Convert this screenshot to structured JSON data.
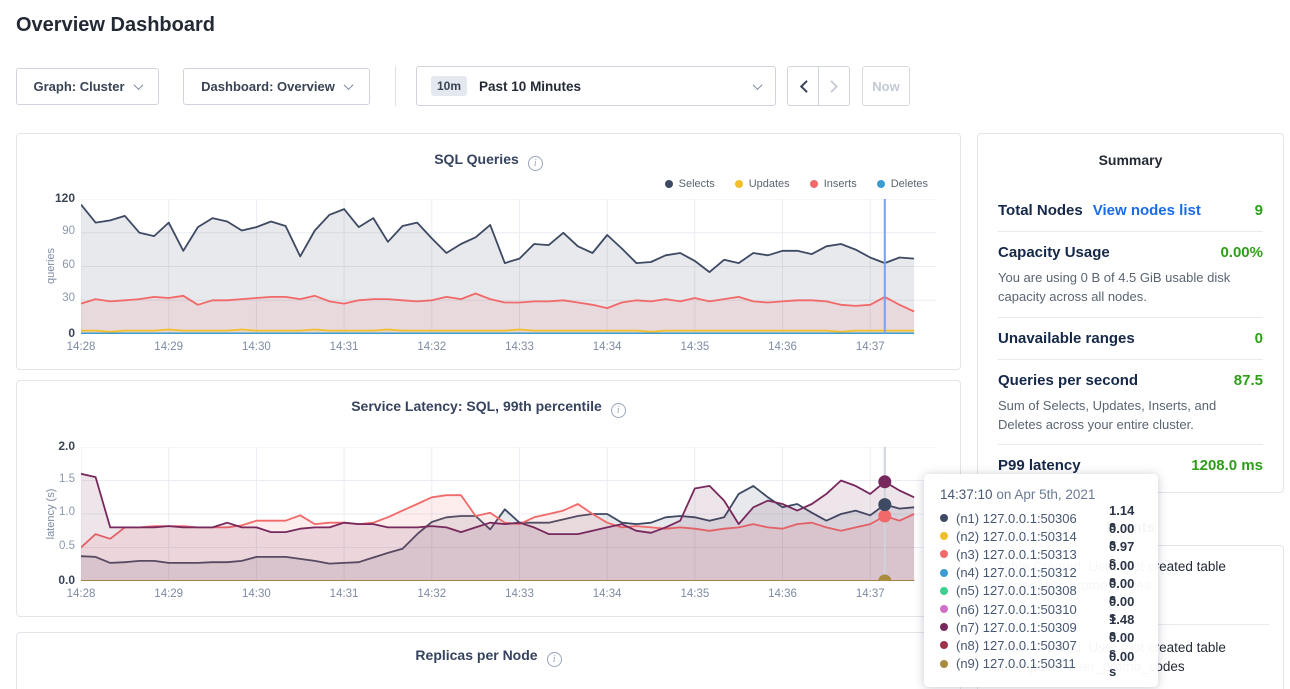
{
  "page_title": "Overview Dashboard",
  "controls": {
    "graph_dropdown": "Graph: Cluster",
    "dashboard_dropdown": "Dashboard: Overview",
    "time_badge": "10m",
    "time_label": "Past 10 Minutes",
    "now_label": "Now"
  },
  "legend": [
    {
      "label": "Selects",
      "color": "#3e4a63"
    },
    {
      "label": "Updates",
      "color": "#f2be2c"
    },
    {
      "label": "Inserts",
      "color": "#f16969"
    },
    {
      "label": "Deletes",
      "color": "#3d9cd3"
    }
  ],
  "charts": {
    "sql": {
      "type": "line",
      "title": "SQL Queries",
      "ylabel": "queries",
      "ymax": 120,
      "span_s": 585,
      "step_s": 10,
      "points": 58,
      "yticks": [
        "0",
        "30",
        "60",
        "90",
        "120"
      ],
      "xticks": [
        "14:28",
        "14:29",
        "14:30",
        "14:31",
        "14:32",
        "14:33",
        "14:34",
        "14:35",
        "14:36",
        "14:37"
      ],
      "series": [
        {
          "name": "Selects",
          "color": "#3e4a63",
          "values": [
            115,
            99,
            101,
            105,
            90,
            87,
            99,
            74,
            95,
            103,
            100,
            92,
            95,
            100,
            96,
            69,
            92,
            106,
            111,
            95,
            103,
            82,
            96,
            99,
            85,
            72,
            80,
            86,
            97,
            63,
            67,
            80,
            79,
            90,
            78,
            72,
            88,
            76,
            63,
            64,
            70,
            72,
            65,
            55,
            66,
            63,
            72,
            70,
            74,
            74,
            71,
            78,
            80,
            75,
            68,
            63,
            68,
            67
          ]
        },
        {
          "name": "Inserts",
          "color": "#f16969",
          "values": [
            27,
            31,
            29,
            30,
            31,
            33,
            32,
            34,
            26,
            30,
            30,
            31,
            32,
            33,
            33,
            31,
            34,
            29,
            27,
            30,
            31,
            31,
            30,
            29,
            30,
            33,
            31,
            36,
            31,
            28,
            28,
            29,
            29,
            30,
            28,
            26,
            23,
            28,
            30,
            29,
            31,
            29,
            32,
            29,
            31,
            33,
            29,
            28,
            29,
            30,
            30,
            29,
            26,
            25,
            26,
            33,
            26,
            20
          ]
        },
        {
          "name": "Updates",
          "color": "#f2be2c",
          "values": [
            3,
            3,
            2,
            3,
            3,
            3,
            4,
            3,
            3,
            3,
            3,
            4,
            3,
            3,
            3,
            3,
            4,
            3,
            3,
            3,
            3,
            4,
            3,
            3,
            3,
            3,
            3,
            3,
            3,
            3,
            4,
            3,
            3,
            3,
            3,
            3,
            3,
            3,
            3,
            2,
            3,
            3,
            3,
            3,
            3,
            3,
            3,
            3,
            3,
            3,
            3,
            3,
            2,
            3,
            3,
            3,
            3,
            3
          ]
        },
        {
          "name": "Deletes",
          "color": "#3d9cd3",
          "flat": 0.5
        }
      ],
      "hover": {
        "time_s": 550,
        "line_color": "#7b9ff2"
      }
    },
    "latency": {
      "type": "line",
      "title": "Service Latency: SQL, 99th percentile",
      "ylabel": "latency (s)",
      "ymax": 2.0,
      "span_s": 585,
      "step_s": 10,
      "points": 58,
      "yticks": [
        "0.0",
        "0.5",
        "1.0",
        "1.5",
        "2.0"
      ],
      "xticks": [
        "14:28",
        "14:29",
        "14:30",
        "14:31",
        "14:32",
        "14:33",
        "14:34",
        "14:35",
        "14:36",
        "14:37"
      ],
      "series": [
        {
          "name": "(n1) 127.0.0.1:50306",
          "color": "#3e4a63",
          "values": [
            0.37,
            0.36,
            0.27,
            0.28,
            0.3,
            0.3,
            0.27,
            0.27,
            0.27,
            0.28,
            0.28,
            0.3,
            0.36,
            0.36,
            0.36,
            0.33,
            0.3,
            0.26,
            0.27,
            0.28,
            0.35,
            0.42,
            0.48,
            0.7,
            0.88,
            0.95,
            0.97,
            0.97,
            0.77,
            1.07,
            0.87,
            0.87,
            0.87,
            0.92,
            0.97,
            1.0,
            1.0,
            0.87,
            0.85,
            0.87,
            0.95,
            0.97,
            0.95,
            0.9,
            0.95,
            1.3,
            1.42,
            1.25,
            1.1,
            1.15,
            1.02,
            0.9,
            1.0,
            1.05,
            0.98,
            1.14,
            1.08,
            1.1
          ]
        },
        {
          "name": "(n3) 127.0.0.1:50313",
          "color": "#f16969",
          "values": [
            0.5,
            0.7,
            0.63,
            0.8,
            0.8,
            0.82,
            0.82,
            0.82,
            0.8,
            0.8,
            0.8,
            0.83,
            0.9,
            0.9,
            0.9,
            0.98,
            0.85,
            0.87,
            0.87,
            0.85,
            0.87,
            0.95,
            1.05,
            1.15,
            1.25,
            1.28,
            1.28,
            0.97,
            1.02,
            0.87,
            0.85,
            0.95,
            1.0,
            1.05,
            1.15,
            1.0,
            0.87,
            0.8,
            0.82,
            0.8,
            0.78,
            0.8,
            0.78,
            0.75,
            0.78,
            0.8,
            0.85,
            0.8,
            0.78,
            0.85,
            0.87,
            0.8,
            0.75,
            0.8,
            0.85,
            0.97,
            0.9,
            1.0
          ]
        },
        {
          "name": "(n7) 127.0.0.1:50309",
          "color": "#77295d",
          "values": [
            1.6,
            1.55,
            0.8,
            0.8,
            0.8,
            0.8,
            0.82,
            0.8,
            0.8,
            0.8,
            0.87,
            0.8,
            0.8,
            0.73,
            0.73,
            0.78,
            0.8,
            0.8,
            0.87,
            0.85,
            0.85,
            0.8,
            0.8,
            0.8,
            0.82,
            0.8,
            0.73,
            0.8,
            0.87,
            0.85,
            0.87,
            0.8,
            0.7,
            0.7,
            0.7,
            0.75,
            0.8,
            0.85,
            0.75,
            0.72,
            0.8,
            0.9,
            1.38,
            1.42,
            1.2,
            0.85,
            1.1,
            1.2,
            1.15,
            1.05,
            1.15,
            1.3,
            1.5,
            1.42,
            1.3,
            1.48,
            1.35,
            1.25
          ]
        },
        {
          "name": "(n2) 127.0.0.1:50314",
          "color": "#f2be2c",
          "flat": 0
        },
        {
          "name": "(n4) 127.0.0.1:50312",
          "color": "#3d9cd3",
          "flat": 0
        },
        {
          "name": "(n5) 127.0.0.1:50308",
          "color": "#3fcf8f",
          "flat": 0
        },
        {
          "name": "(n6) 127.0.0.1:50310",
          "color": "#d070c8",
          "flat": 0
        },
        {
          "name": "(n8) 127.0.0.1:50307",
          "color": "#9e3248",
          "flat": 0
        },
        {
          "name": "(n9) 127.0.0.1:50311",
          "color": "#a98b3d",
          "flat": 0
        }
      ],
      "hover": {
        "time_s": 550,
        "line_color": "#cfd4dc",
        "dots": [
          {
            "color": "#a98b3d",
            "value": 0
          },
          {
            "color": "#f16969",
            "value": 0.97
          },
          {
            "color": "#3e4a63",
            "value": 1.14
          },
          {
            "color": "#77295d",
            "value": 1.48
          }
        ]
      }
    },
    "replicas": {
      "type": "line",
      "title": "Replicas per Node"
    }
  },
  "summary": {
    "heading": "Summary",
    "rows": [
      {
        "label": "Total Nodes",
        "link": "View nodes list",
        "value": "9"
      },
      {
        "label": "Capacity Usage",
        "value": "0.00%",
        "desc": "You are using 0 B of 4.5 GiB usable disk capacity across all nodes."
      },
      {
        "label": "Unavailable ranges",
        "value": "0"
      },
      {
        "label": "Queries per second",
        "value": "87.5",
        "desc": "Sum of Selects, Updates, Inserts, and Deletes across your entire cluster."
      },
      {
        "label": "P99 latency",
        "value": "1208.0 ms"
      }
    ]
  },
  "events": {
    "heading": "Events",
    "items": [
      {
        "line1": "Table Created: User root created table",
        "line2": "movr.public.promo_codes"
      },
      {
        "line1": "Table Created: User root created table",
        "line2": "movr.public.user_promo_codes"
      }
    ]
  },
  "tooltip": {
    "time": "14:37:10",
    "suffix": " on Apr 5th, 2021",
    "rows": [
      {
        "color": "#3e4a63",
        "label": "(n1) 127.0.0.1:50306",
        "value": "1.14 s"
      },
      {
        "color": "#f2be2c",
        "label": "(n2) 127.0.0.1:50314",
        "value": "0.00 s"
      },
      {
        "color": "#f16969",
        "label": "(n3) 127.0.0.1:50313",
        "value": "0.97 s"
      },
      {
        "color": "#3d9cd3",
        "label": "(n4) 127.0.0.1:50312",
        "value": "0.00 s"
      },
      {
        "color": "#3fcf8f",
        "label": "(n5) 127.0.0.1:50308",
        "value": "0.00 s"
      },
      {
        "color": "#d070c8",
        "label": "(n6) 127.0.0.1:50310",
        "value": "0.00 s"
      },
      {
        "color": "#77295d",
        "label": "(n7) 127.0.0.1:50309",
        "value": "1.48 s"
      },
      {
        "color": "#9e3248",
        "label": "(n8) 127.0.0.1:50307",
        "value": "0.00 s"
      },
      {
        "color": "#a98b3d",
        "label": "(n9) 127.0.0.1:50311",
        "value": "0.00 s"
      }
    ]
  }
}
